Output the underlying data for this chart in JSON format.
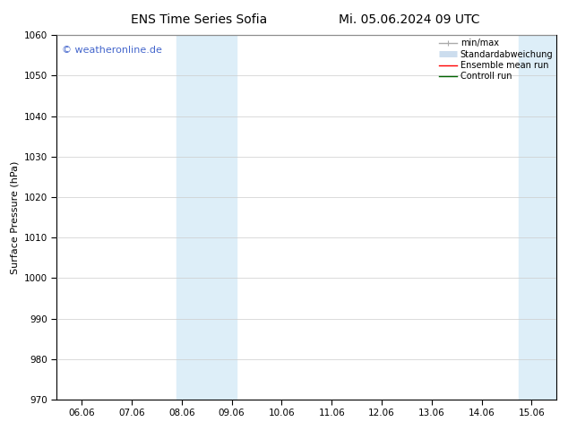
{
  "title_left": "ENS Time Series Sofia",
  "title_right": "Mi. 05.06.2024 09 UTC",
  "ylabel": "Surface Pressure (hPa)",
  "ylim": [
    970,
    1060
  ],
  "yticks": [
    970,
    980,
    990,
    1000,
    1010,
    1020,
    1030,
    1040,
    1050,
    1060
  ],
  "xtick_labels": [
    "06.06",
    "07.06",
    "08.06",
    "09.06",
    "10.06",
    "11.06",
    "12.06",
    "13.06",
    "14.06",
    "15.06"
  ],
  "xtick_positions": [
    0,
    1,
    2,
    3,
    4,
    5,
    6,
    7,
    8,
    9
  ],
  "xlim": [
    -0.5,
    9.5
  ],
  "shaded_regions": [
    {
      "xmin": 1.85,
      "xmax": 2.15,
      "color": "#ddeef8"
    },
    {
      "xmin": 2.85,
      "xmax": 3.15,
      "color": "#ddeef8"
    },
    {
      "xmin": 8.85,
      "xmax": 9.15,
      "color": "#ddeef8"
    },
    {
      "xmin": 9.15,
      "xmax": 9.5,
      "color": "#ddeef8"
    }
  ],
  "watermark_text": "© weatheronline.de",
  "watermark_color": "#4466cc",
  "legend_items": [
    {
      "label": "min/max",
      "color": "#aaaaaa",
      "lw": 1.0
    },
    {
      "label": "Standardabweichung",
      "color": "#ccddee",
      "lw": 5
    },
    {
      "label": "Ensemble mean run",
      "color": "red",
      "lw": 1.0
    },
    {
      "label": "Controll run",
      "color": "darkgreen",
      "lw": 1.0
    }
  ],
  "background_color": "#ffffff",
  "grid_color": "#cccccc",
  "title_fontsize": 10,
  "ylabel_fontsize": 8,
  "tick_fontsize": 7.5,
  "legend_fontsize": 7,
  "watermark_fontsize": 8
}
